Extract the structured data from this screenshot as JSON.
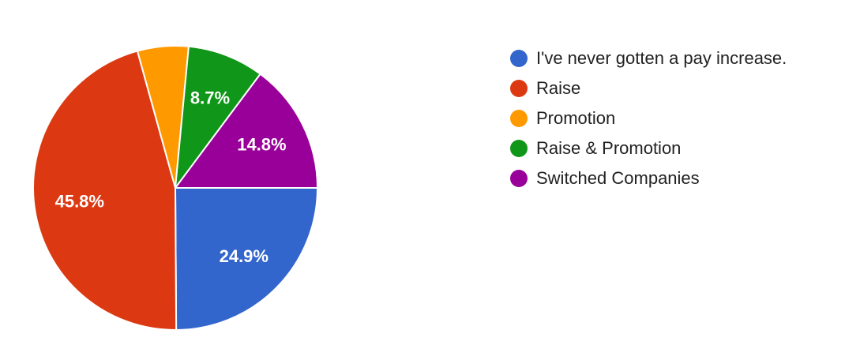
{
  "chart_data": {
    "type": "pie",
    "title": "",
    "slices": [
      {
        "name": "I've never gotten a pay increase.",
        "value": 24.9,
        "label": "24.9%",
        "color": "#3366cc"
      },
      {
        "name": "Raise",
        "value": 45.8,
        "label": "45.8%",
        "color": "#dc3912"
      },
      {
        "name": "Promotion",
        "value": 5.8,
        "label": "",
        "color": "#ff9900"
      },
      {
        "name": "Raise & Promotion",
        "value": 8.7,
        "label": "8.7%",
        "color": "#109618"
      },
      {
        "name": "Switched Companies",
        "value": 14.8,
        "label": "14.8%",
        "color": "#990099"
      }
    ],
    "legend_position": "right"
  }
}
